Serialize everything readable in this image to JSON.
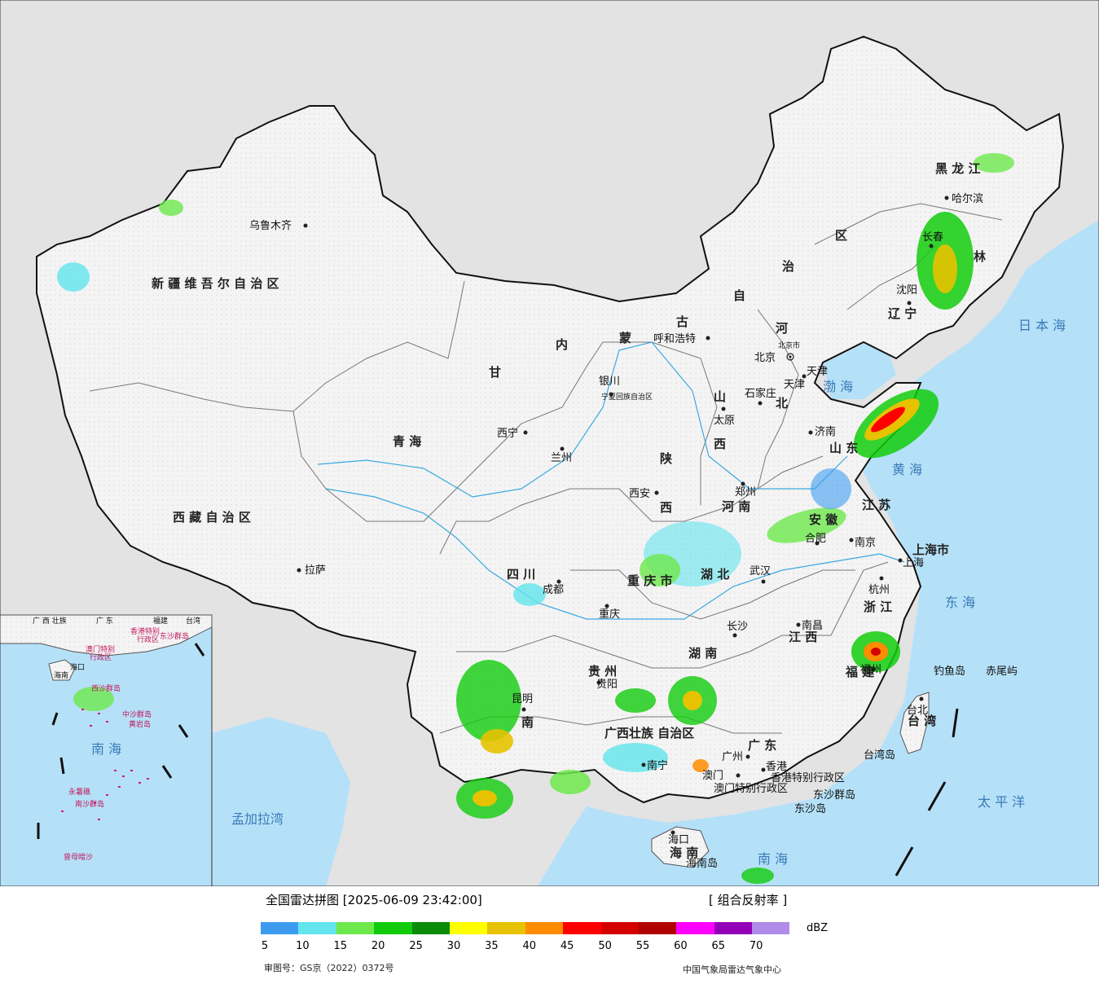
{
  "map": {
    "provinces": [
      {
        "id": "xinjiang",
        "text": "新 疆 维 吾 尔 自 治 区"
      },
      {
        "id": "xizang",
        "text": "西 藏 自 治 区"
      },
      {
        "id": "qinghai",
        "text": "青    海"
      },
      {
        "id": "gansu",
        "text": "甘"
      },
      {
        "id": "neimenggu-1",
        "text": "内"
      },
      {
        "id": "neimenggu-2",
        "text": "蒙"
      },
      {
        "id": "neimenggu-3",
        "text": "古"
      },
      {
        "id": "neimenggu-4",
        "text": "自"
      },
      {
        "id": "neimenggu-5",
        "text": "治"
      },
      {
        "id": "neimenggu-6",
        "text": "区"
      },
      {
        "id": "heilongjiang",
        "text": "黑 龙 江"
      },
      {
        "id": "jilin",
        "text": "林"
      },
      {
        "id": "liaoning",
        "text": "辽 宁"
      },
      {
        "id": "hebei",
        "text": "北"
      },
      {
        "id": "hebei2",
        "text": "河"
      },
      {
        "id": "shanxi-1",
        "text": "山"
      },
      {
        "id": "shanxi-2",
        "text": "西"
      },
      {
        "id": "shaanxi-1",
        "text": "陕"
      },
      {
        "id": "shaanxi-2",
        "text": "西"
      },
      {
        "id": "shandong",
        "text": "山 东"
      },
      {
        "id": "henan",
        "text": "河 南"
      },
      {
        "id": "jiangsu",
        "text": "江 苏"
      },
      {
        "id": "anhui",
        "text": "安 徽"
      },
      {
        "id": "hubei",
        "text": "湖 北"
      },
      {
        "id": "sichuan",
        "text": "四  川"
      },
      {
        "id": "chongqing",
        "text": "重 庆 市"
      },
      {
        "id": "hunan",
        "text": "湖 南"
      },
      {
        "id": "jiangxi",
        "text": "江 西"
      },
      {
        "id": "zhejiang",
        "text": "浙 江"
      },
      {
        "id": "fujian",
        "text": "福 建"
      },
      {
        "id": "guizhou",
        "text": "贵 州"
      },
      {
        "id": "yunnan",
        "text": "南"
      },
      {
        "id": "guangxi",
        "text": "广西壮族 自治区"
      },
      {
        "id": "guangdong",
        "text": "广 东"
      },
      {
        "id": "hainan",
        "text": "海 南"
      },
      {
        "id": "taiwan",
        "text": "台 湾"
      },
      {
        "id": "shanghai",
        "text": "上海市"
      },
      {
        "id": "tianjin",
        "text": "天津"
      },
      {
        "id": "ningxia",
        "text": "宁夏回族自治区"
      },
      {
        "id": "hk",
        "text": "香港特别行政区"
      },
      {
        "id": "macau",
        "text": "澳门特别行政区"
      }
    ],
    "cities": [
      {
        "id": "urumqi",
        "text": "乌鲁木齐"
      },
      {
        "id": "lhasa",
        "text": "拉萨"
      },
      {
        "id": "xining",
        "text": "西宁"
      },
      {
        "id": "lanzhou",
        "text": "兰州"
      },
      {
        "id": "yinchuan",
        "text": "银川"
      },
      {
        "id": "hohhot",
        "text": "呼和浩特"
      },
      {
        "id": "harbin",
        "text": "哈尔滨"
      },
      {
        "id": "changchun",
        "text": "长春"
      },
      {
        "id": "shenyang",
        "text": "沈阳"
      },
      {
        "id": "beijing",
        "text": "北京"
      },
      {
        "id": "beijing-city",
        "text": "北京市"
      },
      {
        "id": "tianjin-city",
        "text": "天津"
      },
      {
        "id": "shijiazhuang",
        "text": "石家庄"
      },
      {
        "id": "taiyuan",
        "text": "太原"
      },
      {
        "id": "jinan",
        "text": "济南"
      },
      {
        "id": "zhengzhou",
        "text": "郑州"
      },
      {
        "id": "xian",
        "text": "西安"
      },
      {
        "id": "hefei",
        "text": "合肥"
      },
      {
        "id": "nanjing",
        "text": "南京"
      },
      {
        "id": "shanghai-city",
        "text": "上海"
      },
      {
        "id": "wuhan",
        "text": "武汉"
      },
      {
        "id": "chengdu",
        "text": "成都"
      },
      {
        "id": "chongqing-city",
        "text": "重庆"
      },
      {
        "id": "hangzhou",
        "text": "杭州"
      },
      {
        "id": "nanchang",
        "text": "南昌"
      },
      {
        "id": "changsha",
        "text": "长沙"
      },
      {
        "id": "fuzhou",
        "text": "福州"
      },
      {
        "id": "guiyang",
        "text": "贵阳"
      },
      {
        "id": "kunming",
        "text": "昆明"
      },
      {
        "id": "nanning",
        "text": "南宁"
      },
      {
        "id": "guangzhou",
        "text": "广州"
      },
      {
        "id": "hongkong",
        "text": "香港"
      },
      {
        "id": "macau-city",
        "text": "澳门"
      },
      {
        "id": "haikou",
        "text": "海口"
      },
      {
        "id": "taipei",
        "text": "台北"
      }
    ],
    "seas": [
      {
        "id": "riben",
        "text": "日 本 海"
      },
      {
        "id": "bohai",
        "text": "渤 海"
      },
      {
        "id": "huanghai",
        "text": "黄 海"
      },
      {
        "id": "donghai",
        "text": "东  海"
      },
      {
        "id": "taipingyang",
        "text": "太  平  洋"
      },
      {
        "id": "nanhai",
        "text": "南  海"
      },
      {
        "id": "mengjiala",
        "text": "孟加拉湾"
      }
    ],
    "islands": [
      {
        "id": "diaoyu",
        "text": "钓鱼岛"
      },
      {
        "id": "chiwei",
        "text": "赤尾屿"
      },
      {
        "id": "dongsha",
        "text": "东沙群岛"
      },
      {
        "id": "dongsha-dao",
        "text": "东沙岛"
      },
      {
        "id": "taiwan-dao",
        "text": "台湾岛"
      },
      {
        "id": "hainan-dao",
        "text": "海南岛"
      }
    ],
    "inset": {
      "labels": [
        "广 西 壮族",
        "广  东",
        "福建",
        "台湾",
        "香港特别",
        "行政区",
        "澳门特别",
        "行政区",
        "东沙群岛",
        "海口",
        "海南",
        "西沙群岛",
        "中沙群岛",
        "黄岩岛",
        "南  海",
        "永暑礁",
        "南沙群岛",
        "曾母暗沙"
      ]
    }
  },
  "legend": {
    "title": "全国雷达拼图 [2025-06-09 23:42:00]",
    "product": "[ 组合反射率 ]",
    "unit": "dBZ",
    "ticks": [
      "5",
      "10",
      "15",
      "20",
      "25",
      "30",
      "35",
      "40",
      "45",
      "50",
      "55",
      "60",
      "65",
      "70"
    ],
    "colors": [
      "#3d9cf0",
      "#62e5ec",
      "#6ee94c",
      "#12cc0c",
      "#0a8c0a",
      "#ffff00",
      "#e6c200",
      "#ff8c00",
      "#ff0000",
      "#d40000",
      "#b00000",
      "#ff00ff",
      "#9400b8",
      "#b08ce8"
    ],
    "review_no": "审图号：GS京（2022）0372号",
    "center": "中国气象局雷达气象中心"
  }
}
